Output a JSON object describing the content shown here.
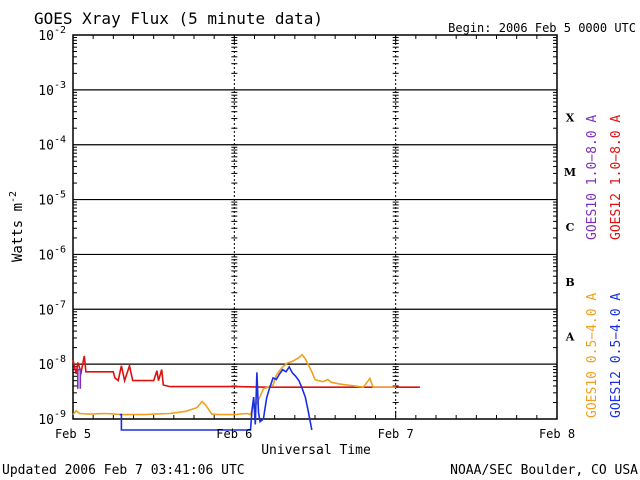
{
  "chart_data": {
    "type": "line",
    "title": "GOES Xray Flux (5 minute data)",
    "begin_label": "Begin:  2006 Feb 5 0000 UTC",
    "xlabel": "Universal Time",
    "ylabel": "Watts m",
    "ylabel_exp": "-2",
    "footer_left": "Updated 2006 Feb  7 03:41:06 UTC",
    "footer_right": "NOAA/SEC Boulder, CO USA",
    "y_scale": "log",
    "ylim": [
      1e-09,
      0.01
    ],
    "xlim_days": [
      0,
      3
    ],
    "x_ticks": [
      {
        "d": 0,
        "label": "Feb 5"
      },
      {
        "d": 1,
        "label": "Feb 6"
      },
      {
        "d": 2,
        "label": "Feb 7"
      },
      {
        "d": 3,
        "label": "Feb 8"
      }
    ],
    "y_ticks": [
      {
        "exp": -9,
        "label": "10",
        "sup": "-9"
      },
      {
        "exp": -8,
        "label": "10",
        "sup": "-8"
      },
      {
        "exp": -7,
        "label": "10",
        "sup": "-7"
      },
      {
        "exp": -6,
        "label": "10",
        "sup": "-6"
      },
      {
        "exp": -5,
        "label": "10",
        "sup": "-5"
      },
      {
        "exp": -4,
        "label": "10",
        "sup": "-4"
      },
      {
        "exp": -3,
        "label": "10",
        "sup": "-3"
      },
      {
        "exp": -2,
        "label": "10",
        "sup": "-2"
      }
    ],
    "flare_classes": [
      {
        "label": "X",
        "exp": -4
      },
      {
        "label": "M",
        "exp": -5
      },
      {
        "label": "C",
        "exp": -6
      },
      {
        "label": "B",
        "exp": -7
      },
      {
        "label": "A",
        "exp": -8
      }
    ],
    "legend": [
      {
        "text": "GOES10 1.0−8.0 A",
        "color": "#7b2fbe"
      },
      {
        "text": "GOES12 1.0−8.0 A",
        "color": "#dd1111"
      },
      {
        "text": "GOES10 0.5−4.0 A",
        "color": "#f0a020"
      },
      {
        "text": "GOES12 0.5−4.0 A",
        "color": "#1a2fe0"
      }
    ],
    "grid": true,
    "series": [
      {
        "name": "GOES12 1.0−8.0 A",
        "color": "#dd1111",
        "points": [
          [
            0.0,
            -7.92
          ],
          [
            0.02,
            -8.18
          ],
          [
            0.03,
            -7.97
          ],
          [
            0.05,
            -8.15
          ],
          [
            0.07,
            -7.85
          ],
          [
            0.08,
            -8.14
          ],
          [
            0.1,
            -8.14
          ],
          [
            0.15,
            -8.14
          ],
          [
            0.2,
            -8.14
          ],
          [
            0.25,
            -8.14
          ],
          [
            0.26,
            -8.25
          ],
          [
            0.28,
            -8.3
          ],
          [
            0.3,
            -8.03
          ],
          [
            0.32,
            -8.3
          ],
          [
            0.35,
            -8.03
          ],
          [
            0.37,
            -8.3
          ],
          [
            0.4,
            -8.3
          ],
          [
            0.45,
            -8.3
          ],
          [
            0.5,
            -8.3
          ],
          [
            0.52,
            -8.12
          ],
          [
            0.53,
            -8.3
          ],
          [
            0.55,
            -8.1
          ],
          [
            0.56,
            -8.38
          ],
          [
            0.6,
            -8.41
          ],
          [
            0.8,
            -8.41
          ],
          [
            1.0,
            -8.41
          ],
          [
            1.2,
            -8.42
          ],
          [
            1.25,
            -8.42
          ],
          [
            1.28,
            -8.42
          ],
          [
            1.4,
            -8.42
          ],
          [
            1.6,
            -8.42
          ],
          [
            1.8,
            -8.42
          ],
          [
            2.0,
            -8.42
          ],
          [
            2.15,
            -8.42
          ]
        ]
      },
      {
        "name": "GOES10 0.5−4.0 A",
        "color": "#f0a020",
        "points": [
          [
            0.0,
            -8.92
          ],
          [
            0.02,
            -8.85
          ],
          [
            0.04,
            -8.9
          ],
          [
            0.1,
            -8.91
          ],
          [
            0.2,
            -8.9
          ],
          [
            0.3,
            -8.92
          ],
          [
            0.45,
            -8.92
          ],
          [
            0.5,
            -8.91
          ],
          [
            0.6,
            -8.9
          ],
          [
            0.7,
            -8.86
          ],
          [
            0.77,
            -8.79
          ],
          [
            0.8,
            -8.68
          ],
          [
            0.82,
            -8.74
          ],
          [
            0.84,
            -8.82
          ],
          [
            0.86,
            -8.91
          ],
          [
            0.9,
            -8.92
          ],
          [
            1.0,
            -8.92
          ],
          [
            1.08,
            -8.9
          ],
          [
            1.1,
            -8.92
          ],
          [
            1.12,
            -8.75
          ],
          [
            1.14,
            -8.72
          ],
          [
            1.18,
            -8.45
          ],
          [
            1.2,
            -8.43
          ],
          [
            1.24,
            -8.38
          ],
          [
            1.26,
            -8.2
          ],
          [
            1.28,
            -8.12
          ],
          [
            1.3,
            -8.05
          ],
          [
            1.33,
            -7.98
          ],
          [
            1.36,
            -7.95
          ],
          [
            1.4,
            -7.88
          ],
          [
            1.42,
            -7.83
          ],
          [
            1.44,
            -7.9
          ],
          [
            1.46,
            -8.02
          ],
          [
            1.48,
            -8.14
          ],
          [
            1.5,
            -8.28
          ],
          [
            1.52,
            -8.3
          ],
          [
            1.55,
            -8.32
          ],
          [
            1.58,
            -8.28
          ],
          [
            1.6,
            -8.33
          ],
          [
            1.65,
            -8.36
          ],
          [
            1.7,
            -8.38
          ],
          [
            1.75,
            -8.4
          ],
          [
            1.8,
            -8.42
          ],
          [
            1.84,
            -8.26
          ],
          [
            1.86,
            -8.42
          ],
          [
            1.95,
            -8.42
          ],
          [
            2.0,
            -8.42
          ]
        ]
      },
      {
        "name": "GOES12 0.5−4.0 A",
        "color": "#1a2fe0",
        "points": [
          [
            0.29,
            -8.92
          ],
          [
            0.3,
            -8.92
          ],
          [
            0.3,
            -9.2
          ],
          [
            0.305,
            -9.2
          ],
          [
            1.1,
            -9.2
          ],
          [
            1.11,
            -8.82
          ],
          [
            1.12,
            -8.6
          ],
          [
            1.13,
            -9.1
          ],
          [
            1.14,
            -8.15
          ],
          [
            1.15,
            -8.88
          ],
          [
            1.16,
            -9.05
          ],
          [
            1.18,
            -9.0
          ],
          [
            1.2,
            -8.62
          ],
          [
            1.22,
            -8.42
          ],
          [
            1.24,
            -8.25
          ],
          [
            1.26,
            -8.28
          ],
          [
            1.28,
            -8.18
          ],
          [
            1.3,
            -8.1
          ],
          [
            1.32,
            -8.14
          ],
          [
            1.34,
            -8.05
          ],
          [
            1.36,
            -8.16
          ],
          [
            1.38,
            -8.22
          ],
          [
            1.4,
            -8.3
          ],
          [
            1.42,
            -8.44
          ],
          [
            1.44,
            -8.6
          ],
          [
            1.46,
            -8.88
          ],
          [
            1.48,
            -9.2
          ]
        ]
      },
      {
        "name": "GOES10 1.0−8.0 A",
        "color": "#7b2fbe",
        "points": [
          [
            0.03,
            -8.45
          ],
          [
            0.03,
            -8.1
          ],
          [
            0.045,
            -8.1
          ],
          [
            0.045,
            -8.45
          ]
        ]
      }
    ]
  }
}
